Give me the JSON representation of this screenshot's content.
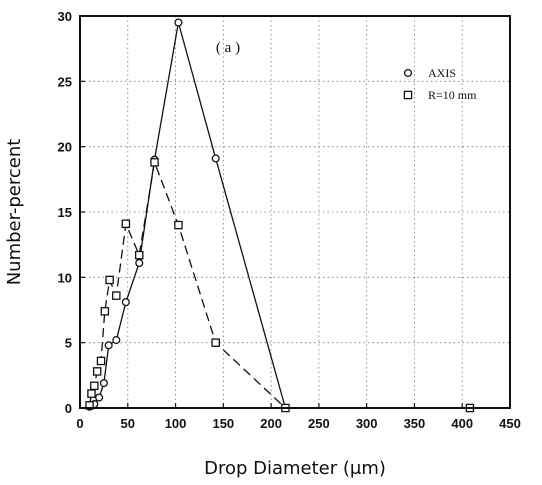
{
  "chart_data": {
    "type": "line",
    "panel_label": "( a )",
    "xlabel": "Drop Diameter (μm)",
    "ylabel": "Number-percent",
    "xlim": [
      0,
      450
    ],
    "ylim": [
      0,
      30
    ],
    "x_ticks": [
      "0",
      "50",
      "100",
      "150",
      "200",
      "250",
      "300",
      "350",
      "400",
      "450"
    ],
    "y_ticks": [
      "0",
      "5",
      "10",
      "15",
      "20",
      "25",
      "30"
    ],
    "grid": "dotted",
    "legend_position": "top-right",
    "series": [
      {
        "name": "AXIS",
        "marker": "circle",
        "line_style": "solid",
        "x": [
          10,
          12,
          15,
          20,
          25,
          30,
          38,
          48,
          62,
          78,
          103,
          142,
          215
        ],
        "y": [
          0.1,
          0.2,
          0.3,
          0.8,
          1.9,
          4.8,
          5.2,
          8.1,
          11.1,
          19.0,
          29.5,
          19.1,
          0.0
        ]
      },
      {
        "name": "R=10 mm",
        "marker": "square",
        "line_style": "dashed",
        "x": [
          10,
          12,
          15,
          18,
          22,
          26,
          31,
          38,
          48,
          62,
          78,
          103,
          142,
          215,
          408
        ],
        "y": [
          0.2,
          1.1,
          1.7,
          2.8,
          3.6,
          7.4,
          9.8,
          8.6,
          14.1,
          11.7,
          18.8,
          14.0,
          5.0,
          0.0,
          0.0
        ]
      }
    ]
  }
}
